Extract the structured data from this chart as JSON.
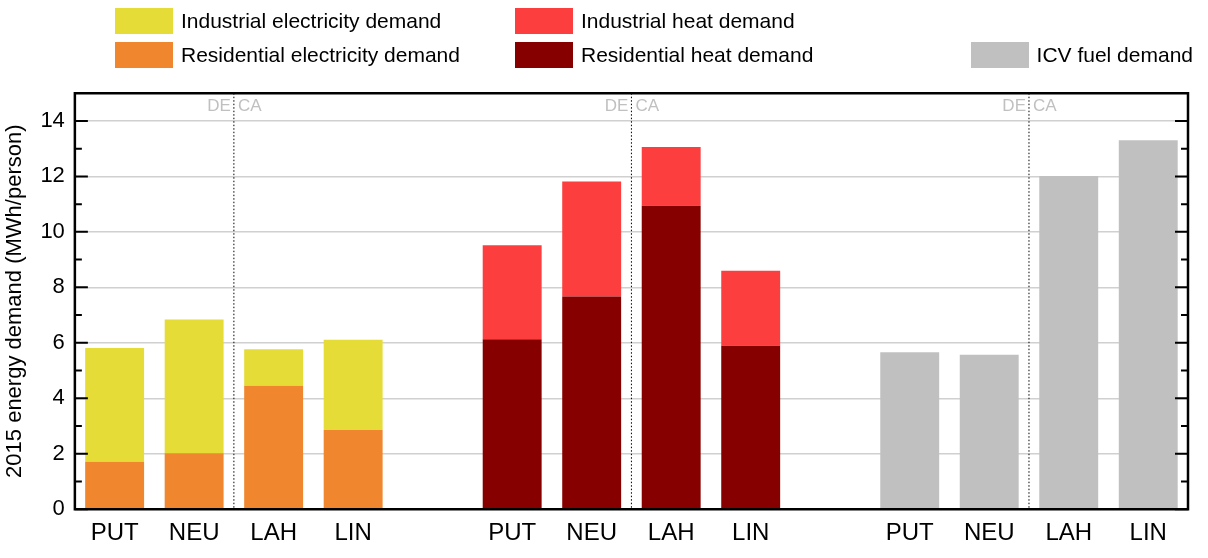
{
  "chart_data": {
    "type": "bar",
    "ylabel": "2015 energy demand (MWh/person)",
    "categories": [
      "PUT",
      "NEU",
      "LAH",
      "LIN",
      null,
      "PUT",
      "NEU",
      "LAH",
      "LIN",
      null,
      "PUT",
      "NEU",
      "LAH",
      "LIN"
    ],
    "stacked": true,
    "legend": "top",
    "grid": "y",
    "ylim": [
      0,
      15
    ],
    "yticks": [
      0,
      {
        "value": 1,
        "label": null
      },
      2,
      {
        "value": 3,
        "label": null
      },
      4,
      {
        "value": 5,
        "label": null
      },
      6,
      {
        "value": 7,
        "label": null
      },
      8,
      {
        "value": 9,
        "label": null
      },
      10,
      {
        "value": 11,
        "label": null
      },
      12,
      {
        "value": 13,
        "label": null
      },
      14
    ],
    "series": [
      {
        "name": "Residential electricity demand",
        "color": "#f0862d",
        "values": [
          1.71,
          2.02,
          4.45,
          2.86,
          null,
          null,
          null,
          null,
          null,
          null,
          null,
          null,
          null,
          null
        ]
      },
      {
        "name": "Industrial electricity demand",
        "color": "#e6dc37",
        "values": [
          4.1,
          4.82,
          1.32,
          3.25,
          null,
          null,
          null,
          null,
          null,
          null,
          null,
          null,
          null,
          null
        ]
      },
      {
        "name": "Residential heat demand",
        "color": "#870000",
        "values": [
          null,
          null,
          null,
          null,
          null,
          6.13,
          7.67,
          10.94,
          5.89,
          null,
          null,
          null,
          null,
          null
        ]
      },
      {
        "name": "Industrial heat demand",
        "color": "#fc3e3f",
        "values": [
          null,
          null,
          null,
          null,
          null,
          3.39,
          4.15,
          2.12,
          2.71,
          null,
          null,
          null,
          null,
          null
        ]
      },
      {
        "name": "ICV fuel demand",
        "color": "#c0c0c0",
        "values": [
          null,
          null,
          null,
          null,
          null,
          null,
          null,
          null,
          null,
          null,
          5.66,
          5.57,
          12.01,
          13.3
        ]
      }
    ],
    "annotations": [
      "DE",
      "CA",
      "DE",
      "CA",
      "DE",
      "CA"
    ]
  }
}
